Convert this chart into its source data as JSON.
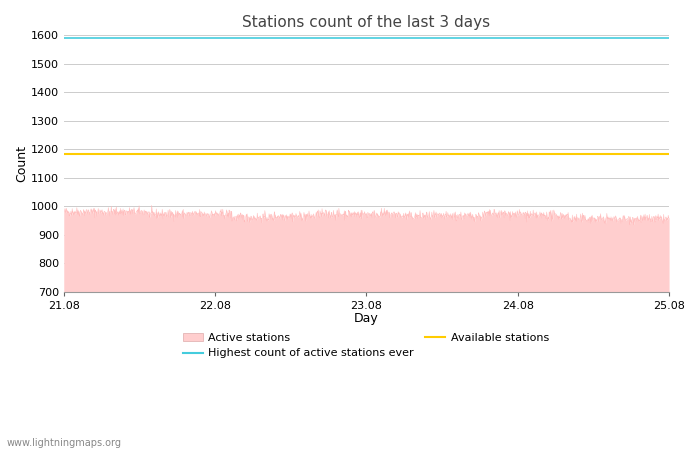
{
  "title": "Stations count of the last 3 days",
  "xlabel": "Day",
  "ylabel": "Count",
  "ylim": [
    700,
    1600
  ],
  "yticks": [
    700,
    800,
    900,
    1000,
    1100,
    1200,
    1300,
    1400,
    1500,
    1600
  ],
  "xlim_start": 0,
  "xlim_end": 288,
  "xtick_positions": [
    0,
    72,
    144,
    216,
    288
  ],
  "xtick_labels": [
    "21.08",
    "22.08",
    "23.08",
    "24.08",
    "25.08"
  ],
  "highest_ever_value": 1590,
  "available_stations_value": 1185,
  "active_stations_base": 970,
  "active_fill_color": "#ffcece",
  "active_line_color": "#ffb8b8",
  "highest_line_color": "#44ccdd",
  "available_line_color": "#ffcc00",
  "background_color": "#ffffff",
  "grid_color": "#cccccc",
  "title_fontsize": 11,
  "axis_label_fontsize": 9,
  "tick_fontsize": 8,
  "watermark": "www.lightningmaps.org"
}
